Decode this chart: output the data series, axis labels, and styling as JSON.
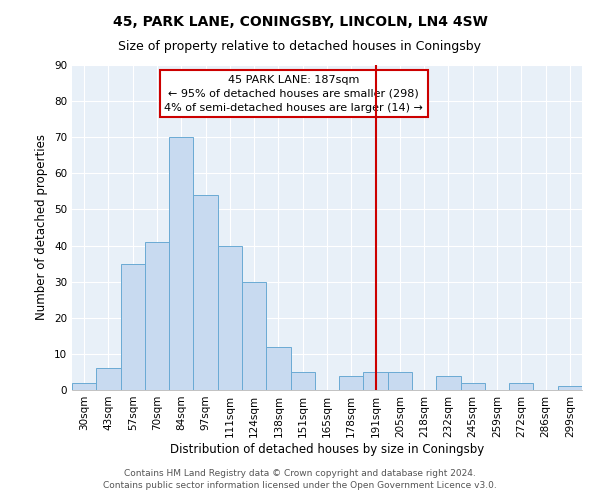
{
  "title": "45, PARK LANE, CONINGSBY, LINCOLN, LN4 4SW",
  "subtitle": "Size of property relative to detached houses in Coningsby",
  "xlabel": "Distribution of detached houses by size in Coningsby",
  "ylabel": "Number of detached properties",
  "bar_labels": [
    "30sqm",
    "43sqm",
    "57sqm",
    "70sqm",
    "84sqm",
    "97sqm",
    "111sqm",
    "124sqm",
    "138sqm",
    "151sqm",
    "165sqm",
    "178sqm",
    "191sqm",
    "205sqm",
    "218sqm",
    "232sqm",
    "245sqm",
    "259sqm",
    "272sqm",
    "286sqm",
    "299sqm"
  ],
  "bar_values": [
    2,
    6,
    35,
    41,
    70,
    54,
    40,
    30,
    12,
    5,
    0,
    4,
    5,
    5,
    0,
    4,
    2,
    0,
    2,
    0,
    1
  ],
  "bar_color": "#c8daf0",
  "bar_edge_color": "#6aaad4",
  "ylim": [
    0,
    90
  ],
  "yticks": [
    0,
    10,
    20,
    30,
    40,
    50,
    60,
    70,
    80,
    90
  ],
  "vline_x_index": 12,
  "vline_color": "#cc0000",
  "annotation_title": "45 PARK LANE: 187sqm",
  "annotation_line1": "← 95% of detached houses are smaller (298)",
  "annotation_line2": "4% of semi-detached houses are larger (14) →",
  "footer1": "Contains HM Land Registry data © Crown copyright and database right 2024.",
  "footer2": "Contains public sector information licensed under the Open Government Licence v3.0.",
  "bg_color": "#e8f0f8",
  "title_fontsize": 10,
  "subtitle_fontsize": 9,
  "axis_label_fontsize": 8.5,
  "tick_fontsize": 7.5,
  "footer_fontsize": 6.5
}
